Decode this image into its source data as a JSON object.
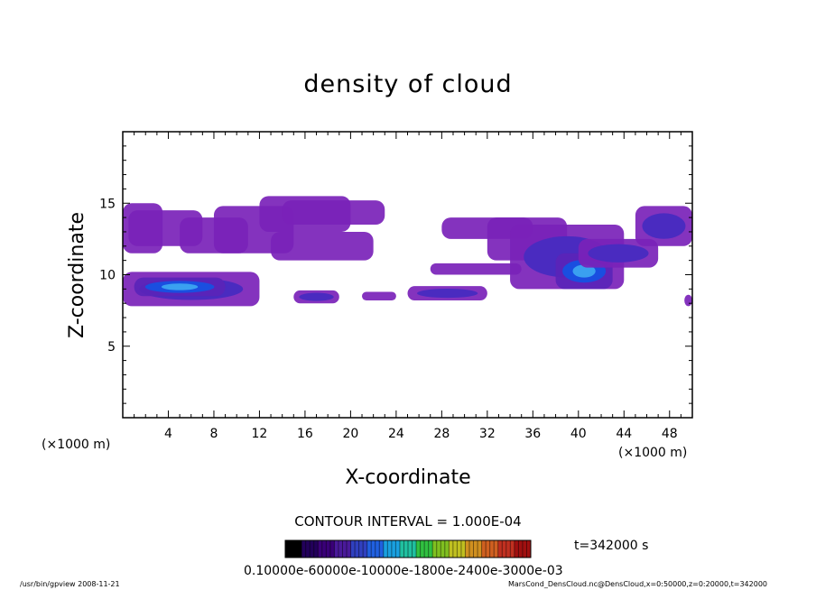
{
  "chart_data": {
    "type": "heatmap",
    "title": "density of cloud",
    "xlabel": "X-coordinate",
    "ylabel": "Z-coordinate",
    "x_unit_left": "(×1000 m)",
    "x_unit_right": "(×1000 m)",
    "xlim": [
      0,
      50
    ],
    "ylim": [
      0,
      20
    ],
    "x_ticks": [
      "4",
      "8",
      "12",
      "16",
      "20",
      "24",
      "28",
      "32",
      "36",
      "40",
      "44",
      "48"
    ],
    "x_tick_values": [
      4,
      8,
      12,
      16,
      20,
      24,
      28,
      32,
      36,
      40,
      44,
      48
    ],
    "y_ticks": [
      "5",
      "10",
      "15"
    ],
    "y_tick_values": [
      5,
      10,
      15
    ],
    "contour_interval": "CONTOUR INTERVAL = 1.000E-04",
    "time_label": "t=342000 s",
    "colorbar_labels": "0.10000e-60000e-10000e-1800e-2400e-3000e-03",
    "colorbar_colors": [
      "#000000",
      "#22005a",
      "#3a0078",
      "#4a1a9a",
      "#3040c0",
      "#2060e0",
      "#1aa0e0",
      "#20c0a0",
      "#30c040",
      "#80c020",
      "#c0c020",
      "#d09020",
      "#d06020",
      "#c03020",
      "#a01010"
    ],
    "cloud_blobs": [
      {
        "x": [
          0,
          3.5
        ],
        "z": [
          11.5,
          15.0
        ],
        "level": "low"
      },
      {
        "x": [
          0.5,
          7
        ],
        "z": [
          12.0,
          14.5
        ],
        "level": "low"
      },
      {
        "x": [
          5,
          11
        ],
        "z": [
          11.5,
          14.0
        ],
        "level": "low"
      },
      {
        "x": [
          8,
          15
        ],
        "z": [
          11.5,
          14.8
        ],
        "level": "low"
      },
      {
        "x": [
          12,
          20
        ],
        "z": [
          13.0,
          15.5
        ],
        "level": "low"
      },
      {
        "x": [
          14,
          23
        ],
        "z": [
          13.5,
          15.2
        ],
        "level": "low"
      },
      {
        "x": [
          13,
          22
        ],
        "z": [
          11.0,
          13.0
        ],
        "level": "low"
      },
      {
        "x": [
          0,
          12
        ],
        "z": [
          7.8,
          10.2
        ],
        "level": "mid"
      },
      {
        "x": [
          1,
          9
        ],
        "z": [
          8.5,
          9.8
        ],
        "level": "high"
      },
      {
        "x": [
          15,
          19
        ],
        "z": [
          8.0,
          8.9
        ],
        "level": "mid"
      },
      {
        "x": [
          21,
          24
        ],
        "z": [
          8.2,
          8.8
        ],
        "level": "low"
      },
      {
        "x": [
          25,
          32
        ],
        "z": [
          8.2,
          9.2
        ],
        "level": "mid"
      },
      {
        "x": [
          27,
          35
        ],
        "z": [
          10.0,
          10.8
        ],
        "level": "low"
      },
      {
        "x": [
          28,
          36
        ],
        "z": [
          12.5,
          14.0
        ],
        "level": "low"
      },
      {
        "x": [
          32,
          39
        ],
        "z": [
          11.0,
          14.0
        ],
        "level": "low"
      },
      {
        "x": [
          34,
          44
        ],
        "z": [
          9.0,
          13.5
        ],
        "level": "mid"
      },
      {
        "x": [
          38,
          43
        ],
        "z": [
          9.0,
          11.5
        ],
        "level": "high"
      },
      {
        "x": [
          40,
          47
        ],
        "z": [
          10.5,
          12.5
        ],
        "level": "mid"
      },
      {
        "x": [
          45,
          50
        ],
        "z": [
          12.0,
          14.8
        ],
        "level": "mid"
      },
      {
        "x": [
          49.3,
          50
        ],
        "z": [
          7.8,
          8.6
        ],
        "level": "low"
      }
    ]
  },
  "footer": {
    "left": "/usr/bin/gpview 2008-11-21",
    "right": "MarsCond_DensCloud.nc@DensCloud,x=0:50000,z=0:20000,t=342000"
  }
}
